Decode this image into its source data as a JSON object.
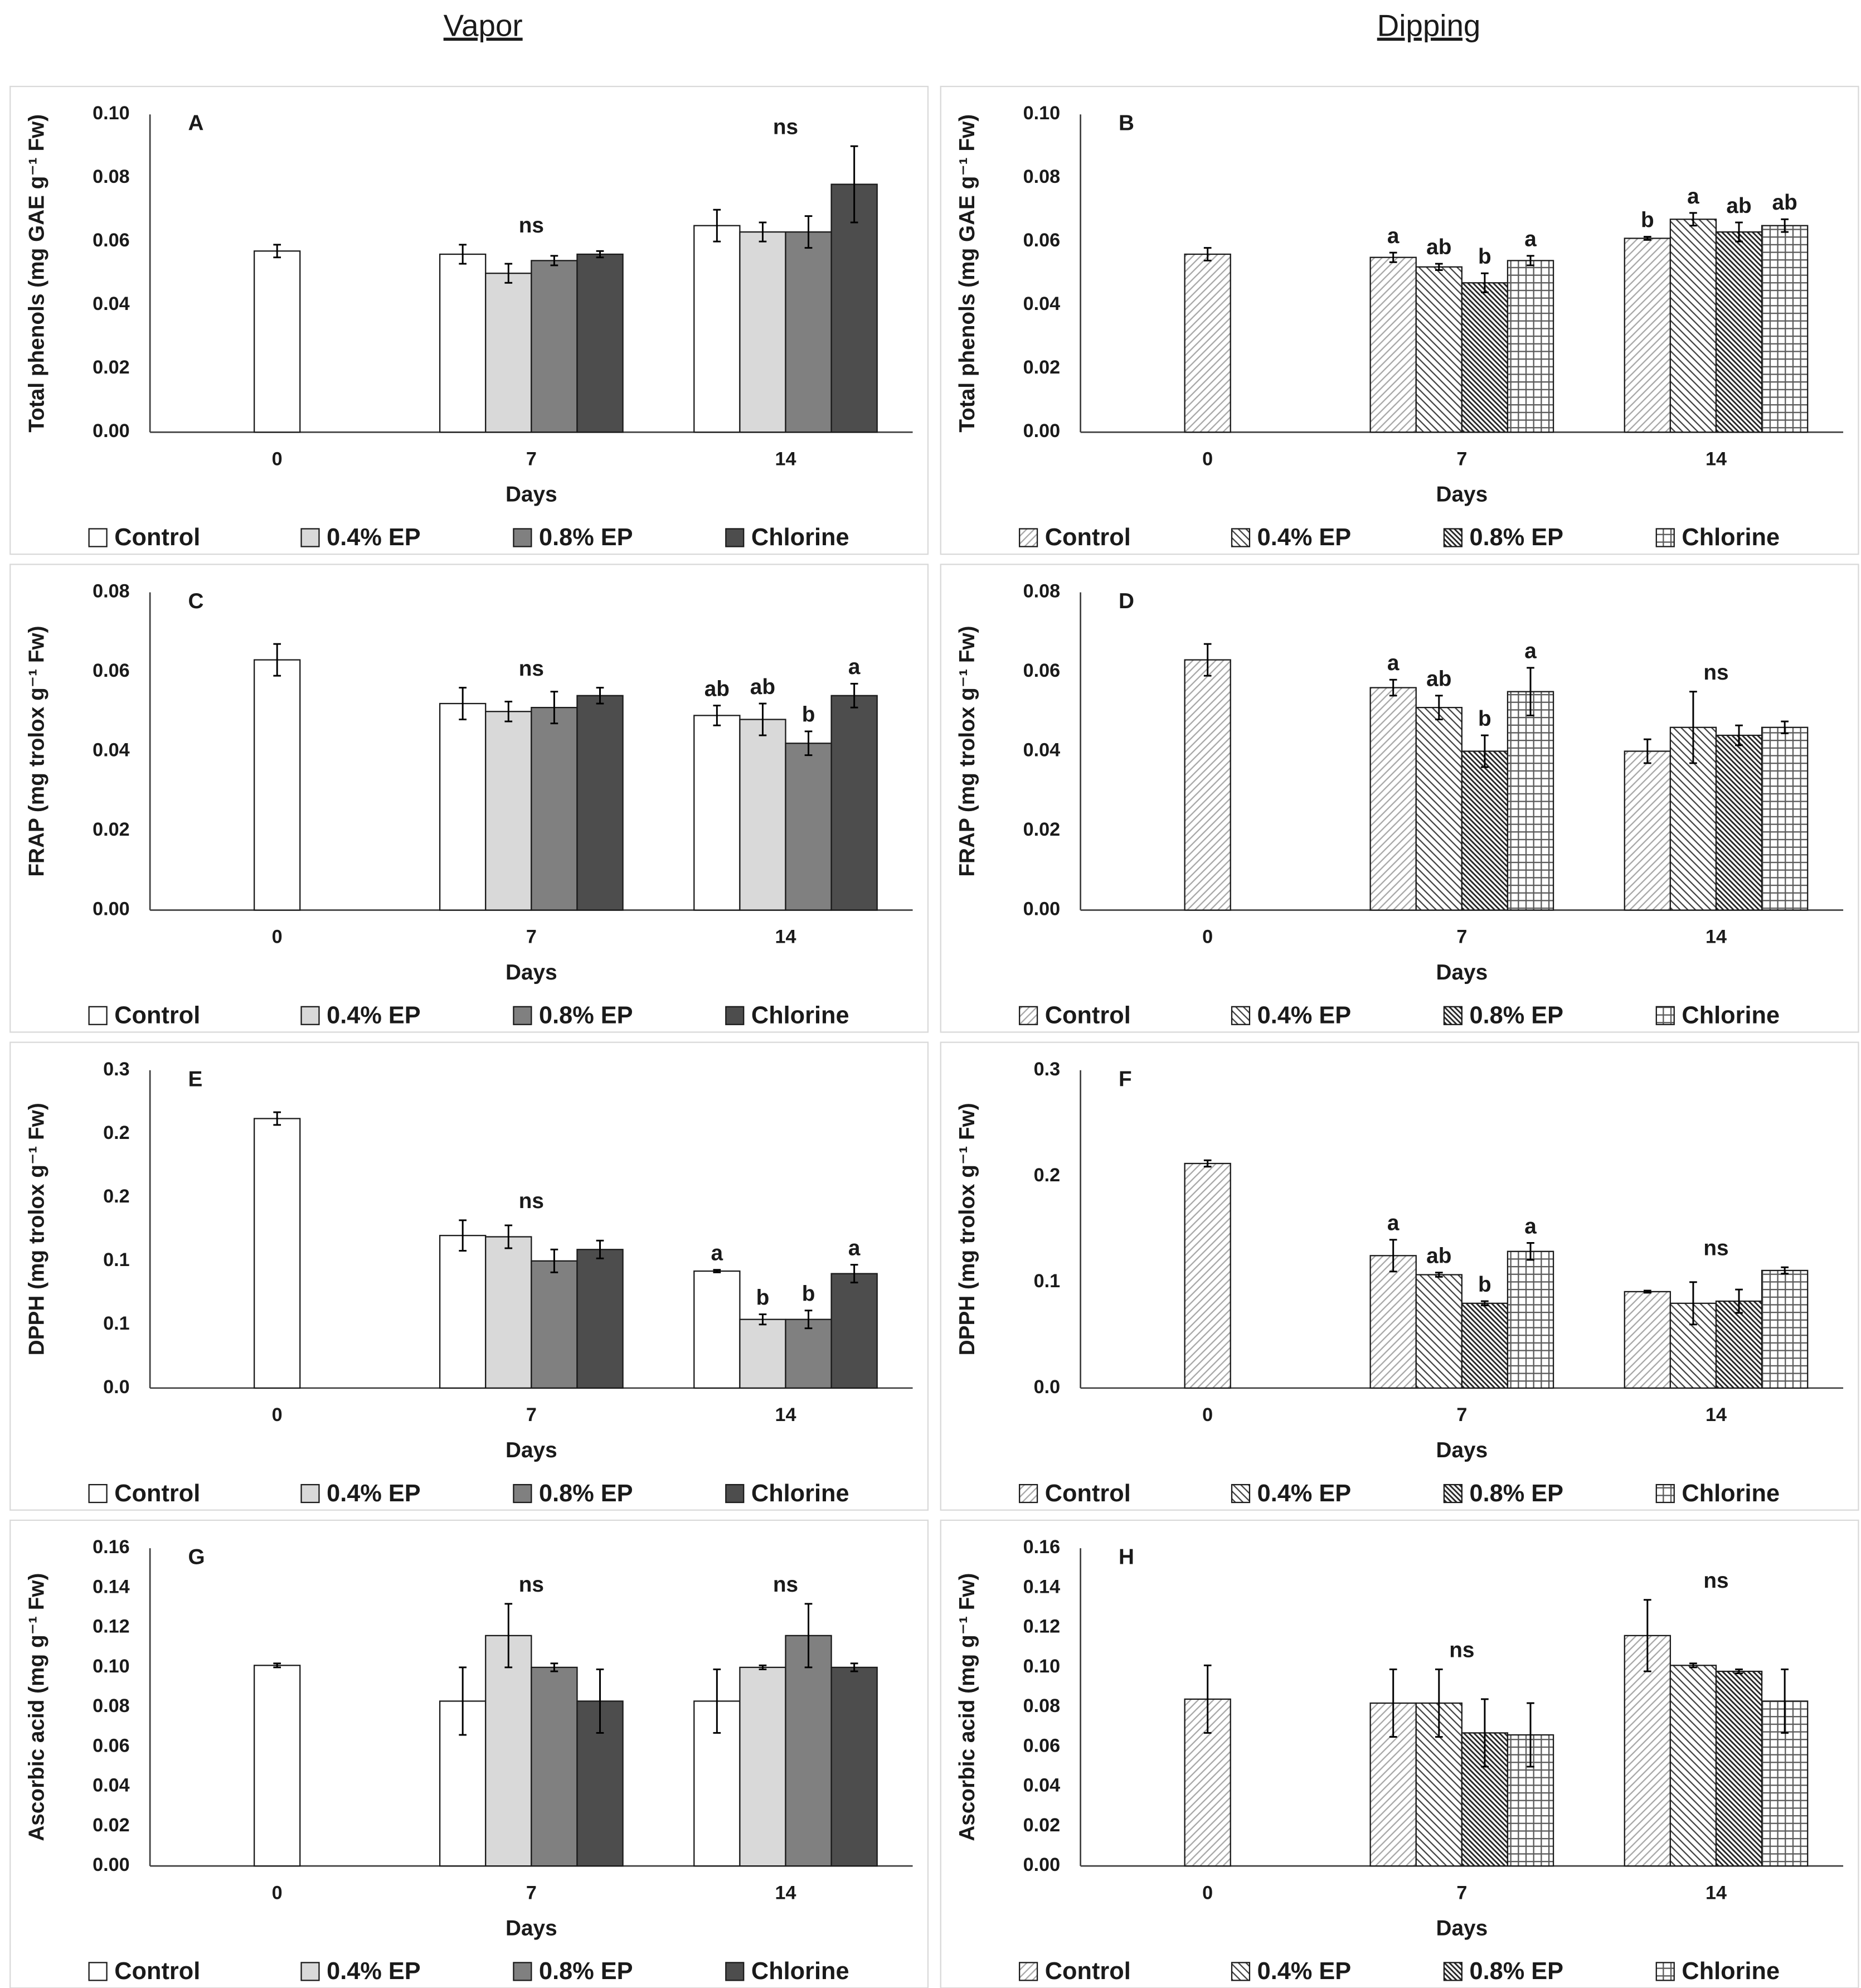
{
  "column_titles": [
    "Vapor",
    "Dipping"
  ],
  "chart_data": [
    {
      "type": "bar",
      "panel_label": "A",
      "ylabel": "Total phenols (mg GAE g⁻¹ Fw)",
      "xlabel": "Days",
      "categories": [
        "0",
        "7",
        "14"
      ],
      "ylim": [
        0,
        0.1
      ],
      "yticks": [
        {
          "value": 0,
          "label": "0.00"
        },
        0.02,
        0.04,
        0.06,
        0.08,
        {
          "value": 0.1,
          "label": "0.10"
        }
      ],
      "group_labels": [
        null,
        "ns",
        "ns"
      ],
      "series": [
        {
          "name": "Control",
          "color": "#ffffff",
          "values": [
            0.057,
            0.056,
            0.065
          ],
          "errors": [
            0.002,
            0.003,
            0.005
          ]
        },
        {
          "name": "0.4% EP",
          "color": "#d9d9d9",
          "values": [
            null,
            0.05,
            0.063
          ],
          "errors": [
            null,
            0.003,
            0.003
          ]
        },
        {
          "name": "0.8% EP",
          "color": "#808080",
          "values": [
            null,
            0.054,
            0.063
          ],
          "errors": [
            null,
            0.0015,
            0.005
          ]
        },
        {
          "name": "Chlorine",
          "color": "#4d4d4d",
          "values": [
            null,
            0.056,
            0.078
          ],
          "errors": [
            null,
            0.001,
            0.012
          ]
        }
      ]
    },
    {
      "type": "bar",
      "panel_label": "B",
      "ylabel": "Total phenols (mg GAE g⁻¹ Fw)",
      "xlabel": "Days",
      "categories": [
        "0",
        "7",
        "14"
      ],
      "ylim": [
        0,
        0.1
      ],
      "yticks": [
        {
          "value": 0,
          "label": "0.00"
        },
        0.02,
        0.04,
        0.06,
        0.08,
        {
          "value": 0.1,
          "label": "0.10"
        }
      ],
      "series": [
        {
          "name": "Control",
          "color": "#a6a6a6",
          "pattern": "forward-hatch",
          "values": [
            0.056,
            0.055,
            0.061
          ],
          "errors": [
            0.002,
            0.0015,
            0.0005
          ],
          "letters": [
            null,
            "a",
            "b"
          ]
        },
        {
          "name": "0.4% EP",
          "color": "#404040",
          "pattern": "back-hatch",
          "values": [
            null,
            0.052,
            0.067
          ],
          "errors": [
            null,
            0.001,
            0.002
          ],
          "letters": [
            null,
            "ab",
            "a"
          ]
        },
        {
          "name": "0.8% EP",
          "color": "#262626",
          "pattern": "dense-back-hatch",
          "values": [
            null,
            0.047,
            0.063
          ],
          "errors": [
            null,
            0.003,
            0.003
          ],
          "letters": [
            null,
            "b",
            "ab"
          ]
        },
        {
          "name": "Chlorine",
          "color": "#595959",
          "pattern": "grid",
          "values": [
            null,
            0.054,
            0.065
          ],
          "errors": [
            null,
            0.0015,
            0.002
          ],
          "letters": [
            null,
            "a",
            "ab"
          ]
        }
      ]
    },
    {
      "type": "bar",
      "panel_label": "C",
      "ylabel": "FRAP (mg trolox g⁻¹ Fw)",
      "xlabel": "Days",
      "categories": [
        "0",
        "7",
        "14"
      ],
      "ylim": [
        0,
        0.08
      ],
      "yticks": [
        {
          "value": 0,
          "label": "0.00"
        },
        0.02,
        0.04,
        0.06,
        0.08
      ],
      "group_labels": [
        null,
        "ns",
        null
      ],
      "series": [
        {
          "name": "Control",
          "color": "#ffffff",
          "values": [
            0.063,
            0.052,
            0.049
          ],
          "errors": [
            0.004,
            0.004,
            0.0025
          ],
          "letters": [
            null,
            null,
            "ab"
          ]
        },
        {
          "name": "0.4% EP",
          "color": "#d9d9d9",
          "values": [
            null,
            0.05,
            0.048
          ],
          "errors": [
            null,
            0.0025,
            0.004
          ],
          "letters": [
            null,
            null,
            "ab"
          ]
        },
        {
          "name": "0.8% EP",
          "color": "#808080",
          "values": [
            null,
            0.051,
            0.042
          ],
          "errors": [
            null,
            0.004,
            0.003
          ],
          "letters": [
            null,
            null,
            "b"
          ]
        },
        {
          "name": "Chlorine",
          "color": "#4d4d4d",
          "values": [
            null,
            0.054,
            0.054
          ],
          "errors": [
            null,
            0.002,
            0.003
          ],
          "letters": [
            null,
            null,
            "a"
          ]
        }
      ]
    },
    {
      "type": "bar",
      "panel_label": "D",
      "ylabel": "FRAP (mg trolox g⁻¹ Fw)",
      "xlabel": "Days",
      "categories": [
        "0",
        "7",
        "14"
      ],
      "ylim": [
        0,
        0.08
      ],
      "yticks": [
        {
          "value": 0,
          "label": "0.00"
        },
        0.02,
        0.04,
        0.06,
        0.08
      ],
      "group_labels": [
        null,
        null,
        "ns"
      ],
      "series": [
        {
          "name": "Control",
          "color": "#a6a6a6",
          "pattern": "forward-hatch",
          "values": [
            0.063,
            0.056,
            0.04
          ],
          "errors": [
            0.004,
            0.002,
            0.003
          ],
          "letters": [
            null,
            "a",
            null
          ]
        },
        {
          "name": "0.4% EP",
          "color": "#404040",
          "pattern": "back-hatch",
          "values": [
            null,
            0.051,
            0.046
          ],
          "errors": [
            null,
            0.003,
            0.009
          ],
          "letters": [
            null,
            "ab",
            null
          ]
        },
        {
          "name": "0.8% EP",
          "color": "#262626",
          "pattern": "dense-back-hatch",
          "values": [
            null,
            0.04,
            0.044
          ],
          "errors": [
            null,
            0.004,
            0.0025
          ],
          "letters": [
            null,
            "b",
            null
          ]
        },
        {
          "name": "Chlorine",
          "color": "#595959",
          "pattern": "grid",
          "values": [
            null,
            0.055,
            0.046
          ],
          "errors": [
            null,
            0.006,
            0.0015
          ],
          "letters": [
            null,
            "a",
            null
          ]
        }
      ]
    },
    {
      "type": "bar",
      "panel_label": "E",
      "ylabel": "DPPH (mg trolox g⁻¹ Fw)",
      "xlabel": "Days",
      "categories": [
        "0",
        "7",
        "14"
      ],
      "ylim": [
        0,
        0.25
      ],
      "yticks": [
        {
          "value": 0,
          "label": "0.0"
        },
        {
          "value": 0.05,
          "label": "0.1"
        },
        0.1,
        {
          "value": 0.15,
          "label": "0.2"
        },
        0.2,
        {
          "value": 0.25,
          "label": "0.3"
        }
      ],
      "group_labels": [
        null,
        "ns",
        null
      ],
      "series": [
        {
          "name": "Control",
          "color": "#ffffff",
          "values": [
            0.212,
            0.12,
            0.092
          ],
          "errors": [
            0.005,
            0.012,
            0.001
          ],
          "letters": [
            null,
            null,
            "a"
          ]
        },
        {
          "name": "0.4% EP",
          "color": "#d9d9d9",
          "values": [
            null,
            0.119,
            0.054
          ],
          "errors": [
            null,
            0.009,
            0.004
          ],
          "letters": [
            null,
            null,
            "b"
          ]
        },
        {
          "name": "0.8% EP",
          "color": "#808080",
          "values": [
            null,
            0.1,
            0.054
          ],
          "errors": [
            null,
            0.009,
            0.007
          ],
          "letters": [
            null,
            null,
            "b"
          ]
        },
        {
          "name": "Chlorine",
          "color": "#4d4d4d",
          "values": [
            null,
            0.109,
            0.09
          ],
          "errors": [
            null,
            0.007,
            0.007
          ],
          "letters": [
            null,
            null,
            "a"
          ]
        }
      ]
    },
    {
      "type": "bar",
      "panel_label": "F",
      "ylabel": "DPPH (mg trolox g⁻¹ Fw)",
      "xlabel": "Days",
      "categories": [
        "0",
        "7",
        "14"
      ],
      "ylim": [
        0,
        0.3
      ],
      "yticks": [
        {
          "value": 0,
          "label": "0.0"
        },
        0.1,
        0.2,
        0.3
      ],
      "group_labels": [
        null,
        null,
        "ns"
      ],
      "series": [
        {
          "name": "Control",
          "color": "#a6a6a6",
          "pattern": "forward-hatch",
          "values": [
            0.212,
            0.125,
            0.091
          ],
          "errors": [
            0.003,
            0.015,
            0.001
          ],
          "letters": [
            null,
            "a",
            null
          ]
        },
        {
          "name": "0.4% EP",
          "color": "#404040",
          "pattern": "back-hatch",
          "values": [
            null,
            0.107,
            0.08
          ],
          "errors": [
            null,
            0.002,
            0.02
          ],
          "letters": [
            null,
            "ab",
            null
          ]
        },
        {
          "name": "0.8% EP",
          "color": "#262626",
          "pattern": "dense-back-hatch",
          "values": [
            null,
            0.08,
            0.082
          ],
          "errors": [
            null,
            0.002,
            0.011
          ],
          "letters": [
            null,
            "b",
            null
          ]
        },
        {
          "name": "Chlorine",
          "color": "#595959",
          "pattern": "grid",
          "values": [
            null,
            0.129,
            0.111
          ],
          "errors": [
            null,
            0.008,
            0.003
          ],
          "letters": [
            null,
            "a",
            null
          ]
        }
      ]
    },
    {
      "type": "bar",
      "panel_label": "G",
      "ylabel": "Ascorbic acid (mg g⁻¹ Fw)",
      "xlabel": "Days",
      "categories": [
        "0",
        "7",
        "14"
      ],
      "ylim": [
        0,
        0.16
      ],
      "yticks": [
        {
          "value": 0,
          "label": "0.00"
        },
        0.02,
        0.04,
        0.06,
        0.08,
        {
          "value": 0.1,
          "label": "0.10"
        },
        0.12,
        0.14,
        0.16
      ],
      "group_labels": [
        null,
        "ns",
        "ns"
      ],
      "series": [
        {
          "name": "Control",
          "color": "#ffffff",
          "values": [
            0.101,
            0.083,
            0.083
          ],
          "errors": [
            0.001,
            0.017,
            0.016
          ]
        },
        {
          "name": "0.4% EP",
          "color": "#d9d9d9",
          "values": [
            null,
            0.116,
            0.1
          ],
          "errors": [
            null,
            0.016,
            0.001
          ]
        },
        {
          "name": "0.8% EP",
          "color": "#808080",
          "values": [
            null,
            0.1,
            0.116
          ],
          "errors": [
            null,
            0.002,
            0.016
          ]
        },
        {
          "name": "Chlorine",
          "color": "#4d4d4d",
          "values": [
            null,
            0.083,
            0.1
          ],
          "errors": [
            null,
            0.016,
            0.002
          ]
        }
      ]
    },
    {
      "type": "bar",
      "panel_label": "H",
      "ylabel": "Ascorbic acid (mg g⁻¹ Fw)",
      "xlabel": "Days",
      "categories": [
        "0",
        "7",
        "14"
      ],
      "ylim": [
        0,
        0.16
      ],
      "yticks": [
        {
          "value": 0,
          "label": "0.00"
        },
        0.02,
        0.04,
        0.06,
        0.08,
        {
          "value": 0.1,
          "label": "0.10"
        },
        0.12,
        0.14,
        0.16
      ],
      "group_labels": [
        null,
        "ns",
        "ns"
      ],
      "series": [
        {
          "name": "Control",
          "color": "#a6a6a6",
          "pattern": "forward-hatch",
          "values": [
            0.084,
            0.082,
            0.116
          ],
          "errors": [
            0.017,
            0.017,
            0.018
          ]
        },
        {
          "name": "0.4% EP",
          "color": "#404040",
          "pattern": "back-hatch",
          "values": [
            null,
            0.082,
            0.101
          ],
          "errors": [
            null,
            0.017,
            0.001
          ]
        },
        {
          "name": "0.8% EP",
          "color": "#262626",
          "pattern": "dense-back-hatch",
          "values": [
            null,
            0.067,
            0.098
          ],
          "errors": [
            null,
            0.017,
            0.001
          ]
        },
        {
          "name": "Chlorine",
          "color": "#595959",
          "pattern": "grid",
          "values": [
            null,
            0.066,
            0.083
          ],
          "errors": [
            null,
            0.016,
            0.016
          ]
        }
      ]
    }
  ]
}
